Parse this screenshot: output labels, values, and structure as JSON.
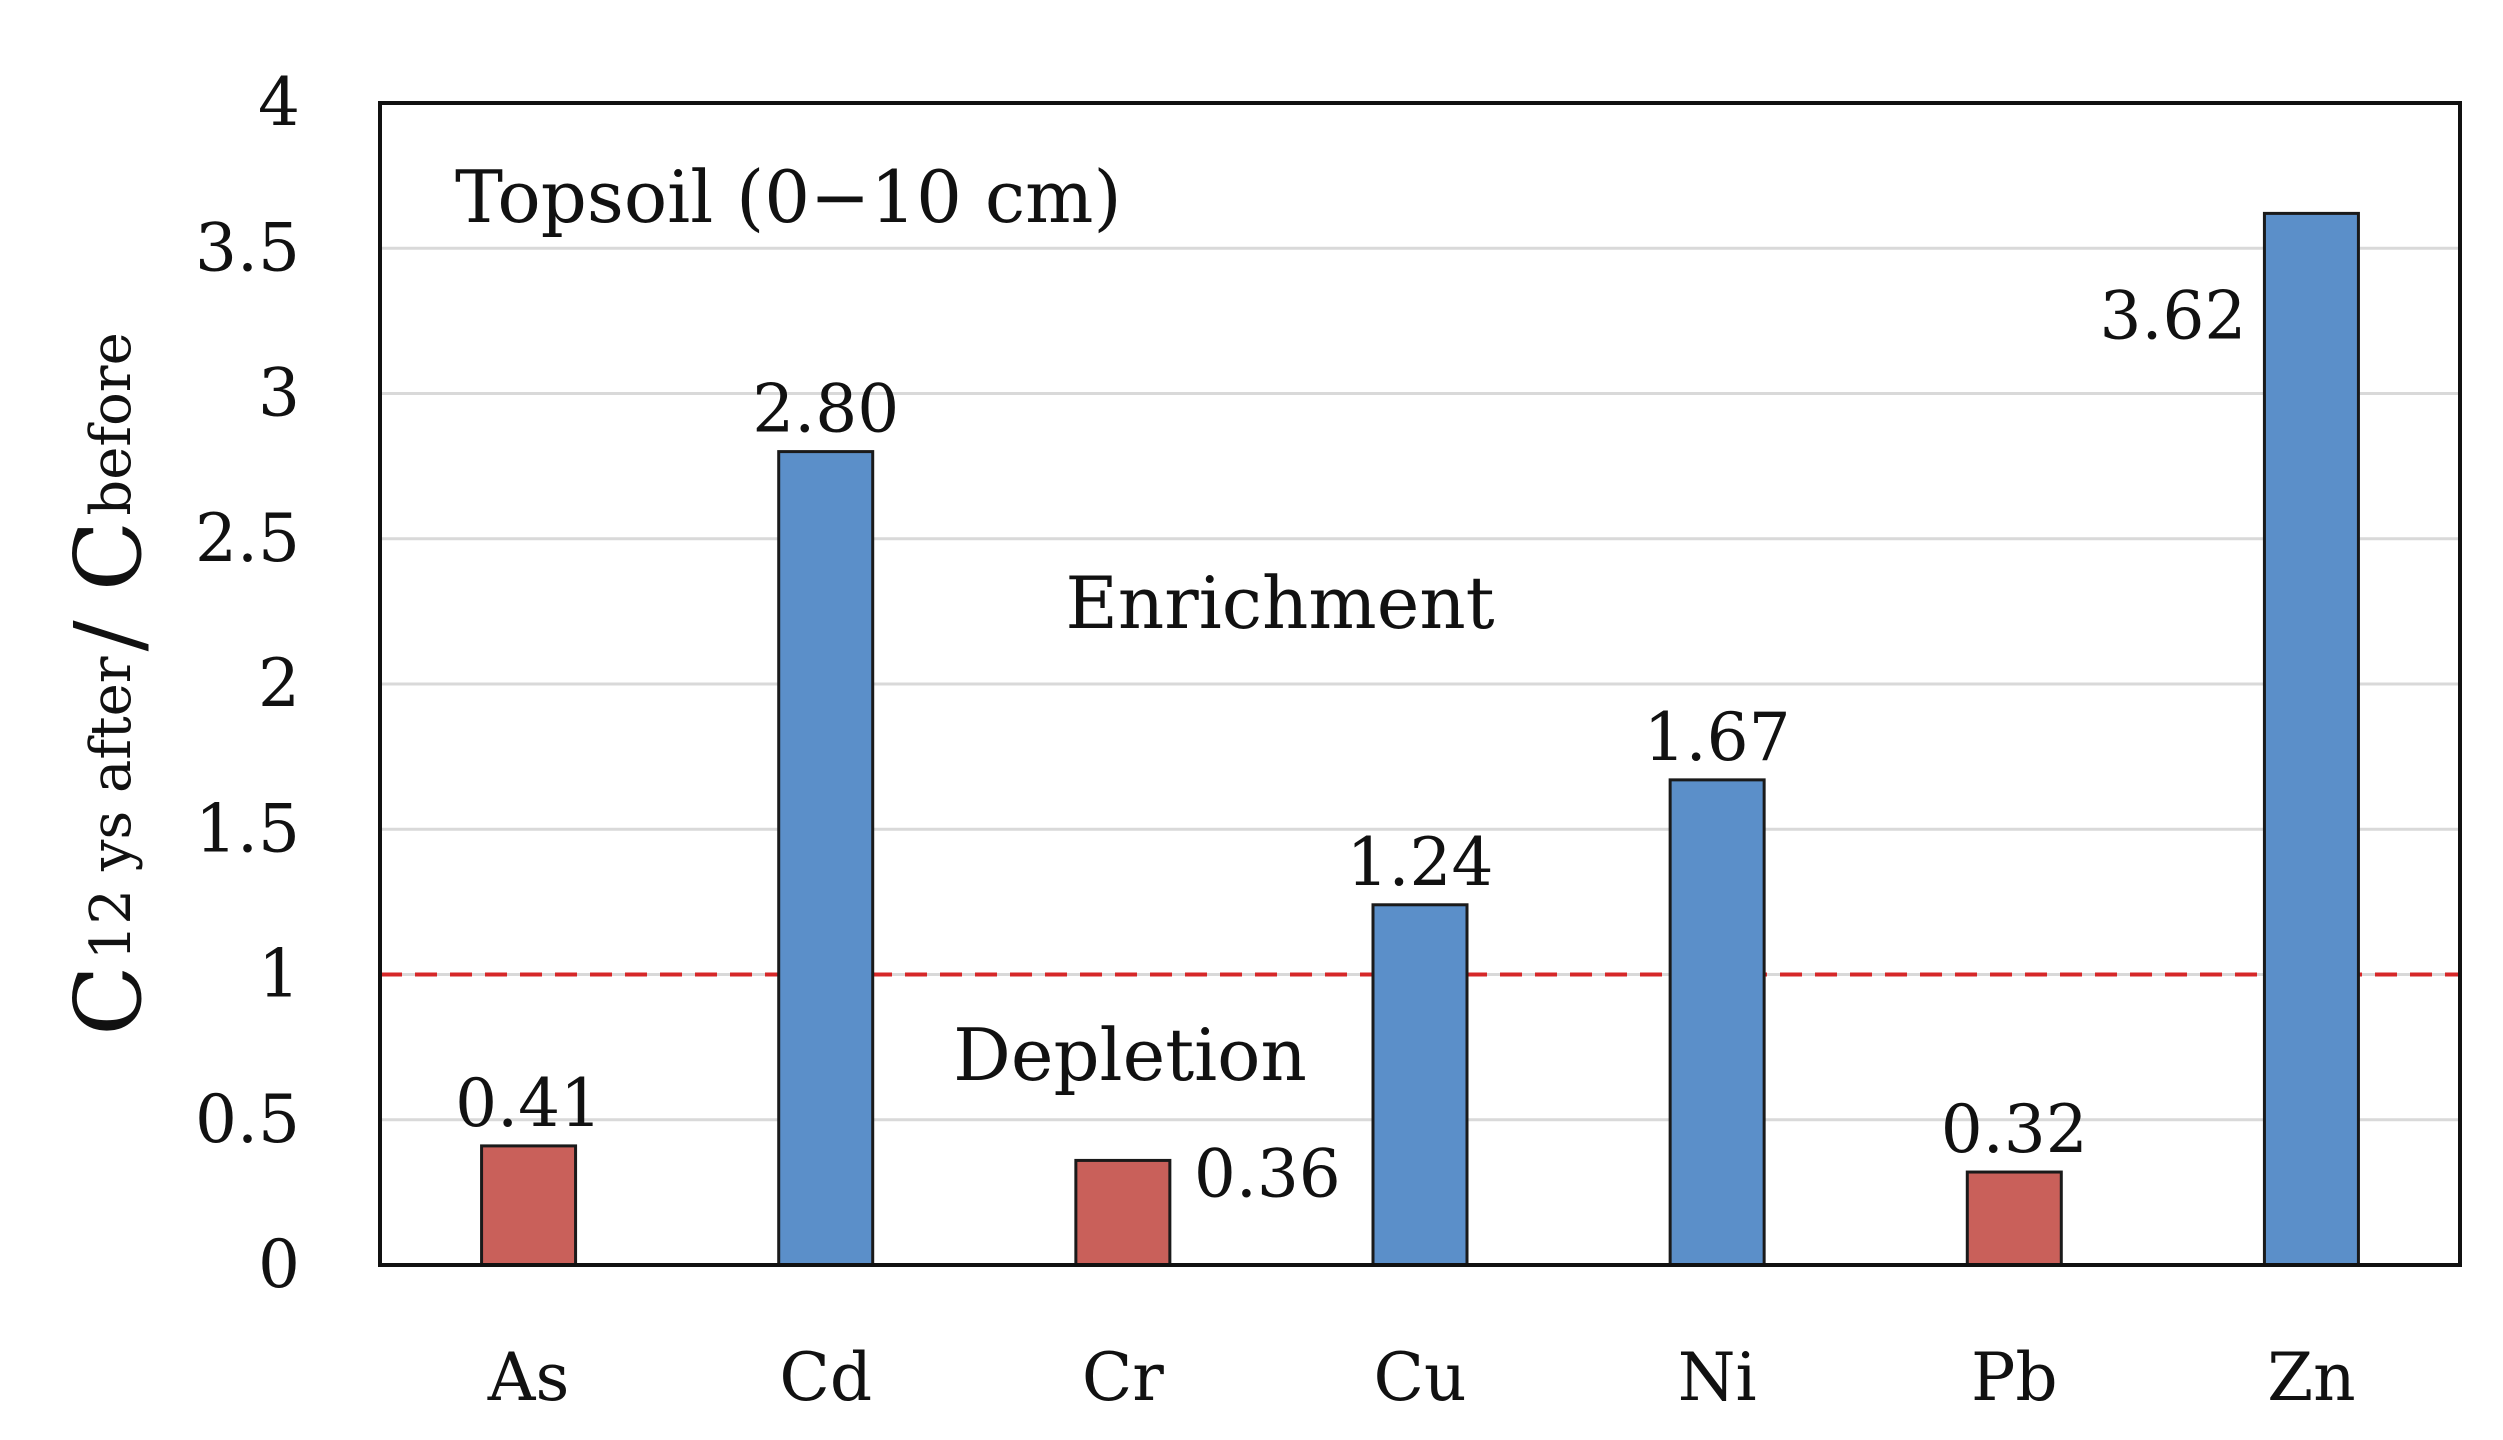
{
  "chart_data": {
    "type": "bar",
    "categories": [
      "As",
      "Cd",
      "Cr",
      "Cu",
      "Ni",
      "Pb",
      "Zn"
    ],
    "values": [
      0.41,
      2.8,
      0.36,
      1.24,
      1.67,
      0.32,
      3.62
    ],
    "value_labels": [
      "0.41",
      "2.80",
      "0.36",
      "1.24",
      "1.67",
      "0.32",
      "3.62"
    ],
    "ylim": [
      0,
      4
    ],
    "yticks": [
      0,
      0.5,
      1,
      1.5,
      2,
      2.5,
      3,
      3.5,
      4
    ],
    "ytick_labels": [
      "0",
      "0.5",
      "1",
      "1.5",
      "2",
      "2.5",
      "3",
      "3.5",
      "4"
    ],
    "ylabel": {
      "c1": "C",
      "sub1": "12 ys after",
      "slash": " / ",
      "c2": "C",
      "sub2": "before"
    },
    "xlabel": "",
    "grid": true,
    "reference_line": {
      "y": 1,
      "style": "dashed",
      "color": "#d62728"
    },
    "colors": {
      "enrichment": "#5b8fc9",
      "depletion": "#c9605a"
    },
    "annotations": {
      "panel": "Topsoil (0−10 cm)",
      "enrichment": "Enrichment",
      "depletion": "Depletion"
    }
  }
}
